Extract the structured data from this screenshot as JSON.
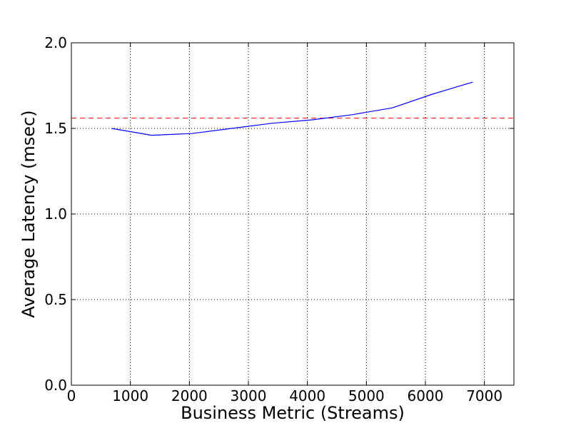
{
  "chart_data": {
    "type": "line",
    "title": "",
    "xlabel": "Business Metric (Streams)",
    "ylabel": "Average Latency (msec)",
    "xlim": [
      0,
      7500
    ],
    "ylim": [
      0.0,
      2.0
    ],
    "xticks": [
      0,
      1000,
      2000,
      3000,
      4000,
      5000,
      6000,
      7000
    ],
    "yticks": [
      0.0,
      0.5,
      1.0,
      1.5,
      2.0
    ],
    "xtick_labels": [
      "0",
      "1000",
      "2000",
      "3000",
      "4000",
      "5000",
      "6000",
      "7000"
    ],
    "ytick_labels": [
      "0.0",
      "0.5",
      "1.0",
      "1.5",
      "2.0"
    ],
    "grid": true,
    "legend": null,
    "series": [
      {
        "color": "#0000ff",
        "style": "solid",
        "x": [
          680,
          1360,
          2040,
          2720,
          3400,
          4080,
          4760,
          5440,
          6120,
          6800
        ],
        "y": [
          1.5,
          1.46,
          1.47,
          1.5,
          1.53,
          1.55,
          1.58,
          1.62,
          1.7,
          1.77
        ]
      }
    ],
    "reference_lines": [
      {
        "orientation": "horizontal",
        "y": 1.56,
        "color": "#ff0000",
        "style": "dashed"
      }
    ]
  }
}
